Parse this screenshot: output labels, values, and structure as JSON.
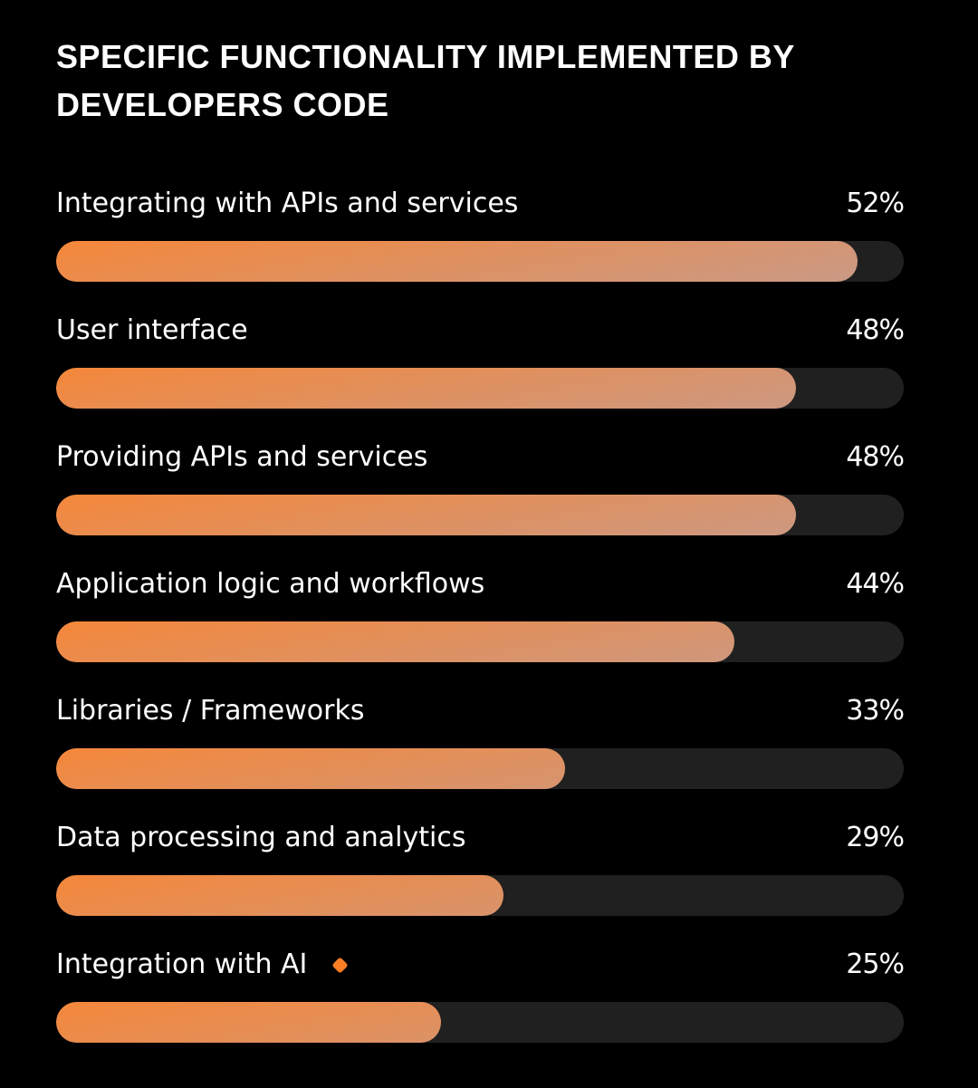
{
  "chart_data": {
    "type": "bar",
    "orientation": "horizontal",
    "title": "SPECIFIC FUNCTIONALITY IMPLEMENTED BY DEVELOPERS CODE",
    "categories": [
      "Integrating with APIs and services",
      "User interface",
      "Providing APIs and services",
      "Application logic and workflows",
      "Libraries / Frameworks",
      "Data processing and analytics",
      "Integration with AI"
    ],
    "values": [
      52,
      48,
      48,
      44,
      33,
      29,
      25
    ],
    "value_labels": [
      "52%",
      "48%",
      "48%",
      "44%",
      "33%",
      "29%",
      "25%"
    ],
    "highlighted": [
      false,
      false,
      false,
      false,
      false,
      false,
      true
    ],
    "xlim": [
      0,
      55
    ],
    "unit": "%",
    "grid": false,
    "legend": "none"
  },
  "colors": {
    "background": "#000000",
    "track": "#202020",
    "gradient_start": "#f5873a",
    "gradient_end": "#4b9be2",
    "highlight_marker": "#fb7d25",
    "text": "#ffffff"
  },
  "icons": {
    "highlight": "diamond-icon"
  }
}
